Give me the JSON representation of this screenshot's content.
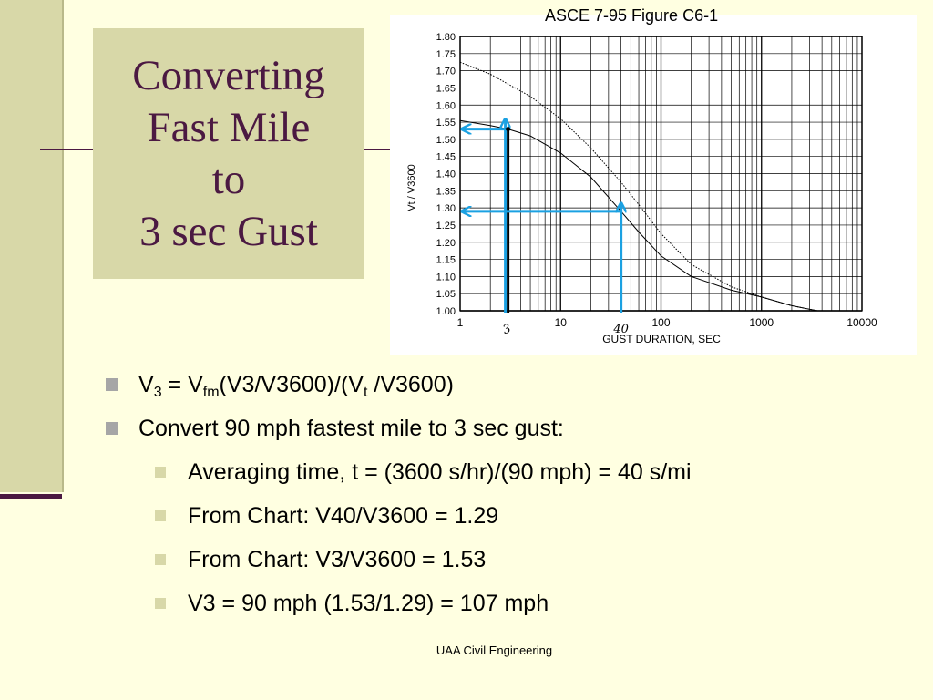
{
  "slide": {
    "title_lines": [
      "Converting",
      "Fast Mile",
      "to",
      "3 sec Gust"
    ],
    "footer": "UAA Civil Engineering"
  },
  "bullets": {
    "b1": {
      "v": "V",
      "sub1": "3",
      "eq": " = V",
      "sub2": "fm",
      "mid": "(V3/V3600)/(V",
      "sub3": "t",
      "end": " /V3600)"
    },
    "b2": " Convert 90 mph fastest mile to 3 sec gust:",
    "sub": [
      "Averaging time, t = (3600 s/hr)/(90 mph) = 40 s/mi",
      "From Chart: V40/V3600 = 1.29",
      "From Chart: V3/V3600 = 1.53",
      "V3 = 90 mph (1.53/1.29) = 107 mph"
    ]
  },
  "chart_data": {
    "type": "line",
    "title": "ASCE 7-95 Figure C6-1",
    "xlabel": "GUST DURATION, SEC",
    "ylabel": "Vt / V3600",
    "x_scale": "log",
    "xlim": [
      1,
      10000
    ],
    "ylim": [
      1.0,
      1.8
    ],
    "y_ticks": [
      "1.80",
      "1.75",
      "1.70",
      "1.65",
      "1.60",
      "1.55",
      "1.50",
      "1.45",
      "1.40",
      "1.35",
      "1.30",
      "1.25",
      "1.20",
      "1.15",
      "1.10",
      "1.05",
      "1.00"
    ],
    "x_ticks": [
      {
        "value": 1,
        "label": "1"
      },
      {
        "value": 10,
        "label": "10"
      },
      {
        "value": 100,
        "label": "100"
      },
      {
        "value": 1000,
        "label": "1000"
      },
      {
        "value": 10000,
        "label": "10000"
      }
    ],
    "grid": true,
    "series": [
      {
        "style": "solid",
        "color": "#000000",
        "x": [
          1,
          2,
          3,
          5,
          10,
          20,
          40,
          60,
          100,
          200,
          500,
          1000,
          2000,
          3600
        ],
        "y": [
          1.555,
          1.54,
          1.53,
          1.51,
          1.46,
          1.39,
          1.29,
          1.23,
          1.16,
          1.1,
          1.06,
          1.04,
          1.015,
          1.0
        ]
      },
      {
        "style": "dotted",
        "color": "#000000",
        "x": [
          1,
          2,
          5,
          10,
          20,
          40,
          60,
          100,
          200,
          500,
          1000,
          2000,
          3600
        ],
        "y": [
          1.725,
          1.69,
          1.625,
          1.56,
          1.475,
          1.375,
          1.31,
          1.225,
          1.135,
          1.07,
          1.04,
          1.015,
          1.0
        ]
      }
    ],
    "annotations": [
      {
        "type": "hand_label",
        "x": 3,
        "text": "3"
      },
      {
        "type": "hand_label",
        "x": 40,
        "text": "40"
      },
      {
        "type": "guide_arrow",
        "x": 3,
        "y": 1.53,
        "color": "#000000"
      },
      {
        "type": "guide_arrow",
        "x": 3,
        "y": 1.53,
        "color": "#1BA1E2"
      },
      {
        "type": "guide_arrow",
        "x": 40,
        "y": 1.29,
        "color": "#1BA1E2"
      }
    ],
    "point_marker": {
      "x": 3,
      "y": 1.53
    }
  }
}
